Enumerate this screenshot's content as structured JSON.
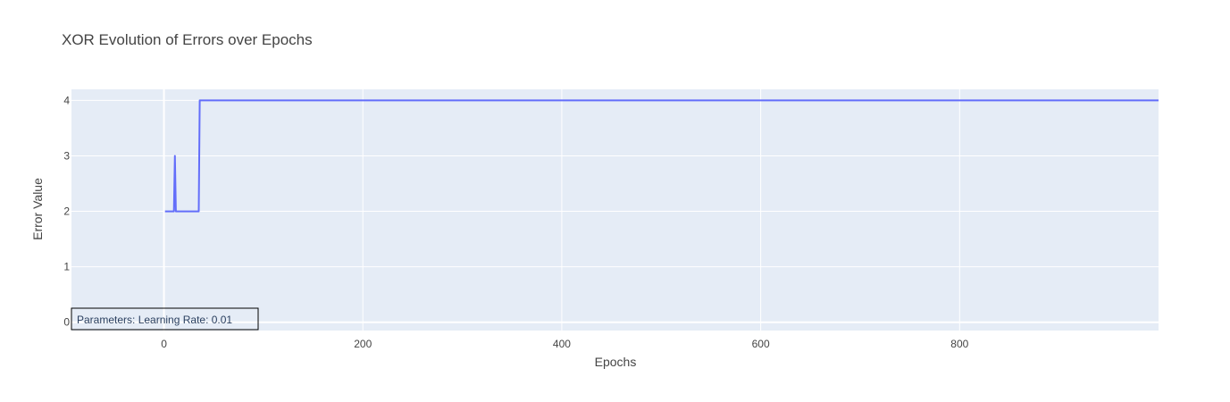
{
  "chart_data": {
    "type": "line",
    "title": "XOR Evolution of Errors over Epochs",
    "xlabel": "Epochs",
    "ylabel": "Error Value",
    "xlim": [
      -93,
      1000
    ],
    "ylim": [
      -0.15,
      4.2
    ],
    "xticks": [
      0,
      200,
      400,
      600,
      800
    ],
    "xtick_labels": [
      "0",
      "200",
      "400",
      "600",
      "800"
    ],
    "yticks": [
      0,
      1,
      2,
      3,
      4
    ],
    "ytick_labels": [
      "0",
      "1",
      "2",
      "3",
      "4"
    ],
    "grid": true,
    "legend": false,
    "colors": {
      "plot_background": "#e5ecf6",
      "grid": "#ffffff",
      "line": "#636efa",
      "text": "#444444",
      "annotation_border": "#000000"
    },
    "series": [
      {
        "x": [
          1,
          10,
          11,
          12,
          13,
          35,
          36,
          1000
        ],
        "y": [
          2,
          2,
          3,
          2,
          2,
          2,
          4,
          4
        ]
      }
    ],
    "annotation": "Parameters: Learning Rate: 0.01"
  }
}
